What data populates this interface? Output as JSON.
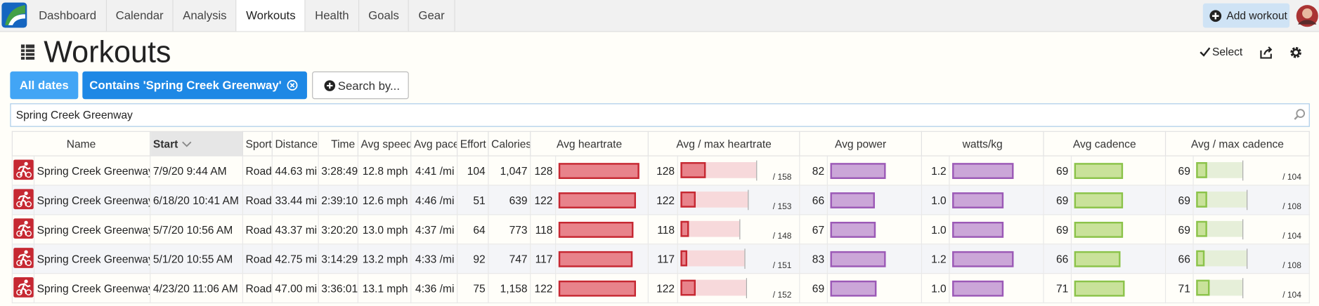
{
  "nav": {
    "items": [
      "Dashboard",
      "Calendar",
      "Analysis",
      "Workouts",
      "Health",
      "Goals",
      "Gear"
    ],
    "active": 3,
    "add_button": "Add workout"
  },
  "header": {
    "title": "Workouts",
    "select": "Select"
  },
  "filters": {
    "date": "All dates",
    "contains": "Contains 'Spring Creek Greenway'",
    "search_by": "Search by..."
  },
  "search": {
    "value": "Spring Creek Greenway"
  },
  "table": {
    "columns": [
      "Name",
      "Start",
      "Sport",
      "Distance",
      "Time",
      "Avg speed",
      "Avg pace",
      "Effort",
      "Calories",
      "Avg heartrate",
      "Avg / max heartrate",
      "Avg power",
      "watts/kg",
      "Avg cadence",
      "Avg / max cadence"
    ],
    "rows": [
      {
        "name": "Spring Creek Greenway",
        "start": "7/9/20 9:44 AM",
        "sport": "Road",
        "distance": "44.63 mi",
        "time": "3:28:49",
        "avg_speed": "12.8 mph",
        "avg_pace": "4:41 /mi",
        "effort": 104,
        "calories": "1,047",
        "heartrate": 128,
        "max_heartrate": {
          "value": 158,
          "label": "/ 158"
        },
        "power": 82,
        "watts_per_kg": 1.2,
        "cadence": 69,
        "max_cadence": {
          "value": 104,
          "label": "/ 104"
        }
      },
      {
        "name": "Spring Creek Greenway",
        "start": "6/18/20 10:41 AM",
        "sport": "Road",
        "distance": "33.44 mi",
        "time": "2:39:10",
        "avg_speed": "12.6 mph",
        "avg_pace": "4:46 /mi",
        "effort": 51,
        "calories": "639",
        "heartrate": 122,
        "max_heartrate": {
          "value": 153,
          "label": "/ 153"
        },
        "power": 66,
        "watts_per_kg": {
          "value": 1.0,
          "label": "1.0"
        },
        "cadence": 69,
        "max_cadence": {
          "value": 108,
          "label": "/ 108"
        }
      },
      {
        "name": "Spring Creek Greenway",
        "start": "5/7/20 10:56 AM",
        "sport": "Road",
        "distance": "43.37 mi",
        "time": "3:20:20",
        "avg_speed": "13.0 mph",
        "avg_pace": "4:37 /mi",
        "effort": 64,
        "calories": "773",
        "heartrate": 118,
        "max_heartrate": {
          "value": 148,
          "label": "/ 148"
        },
        "power": 67,
        "watts_per_kg": {
          "value": 1.0,
          "label": "1.0"
        },
        "cadence": 69,
        "max_cadence": {
          "value": 104,
          "label": "/ 104"
        }
      },
      {
        "name": "Spring Creek Greenway",
        "start": "5/1/20 10:55 AM",
        "sport": "Road",
        "distance": "42.75 mi",
        "time": "3:14:29",
        "avg_speed": "13.2 mph",
        "avg_pace": "4:33 /mi",
        "effort": 92,
        "calories": "747",
        "heartrate": 117,
        "max_heartrate": {
          "value": 151,
          "label": "/ 151"
        },
        "power": 83,
        "watts_per_kg": 1.2,
        "cadence": 66,
        "max_cadence": {
          "value": 108,
          "label": "/ 108"
        }
      },
      {
        "name": "Spring Creek Greenway",
        "start": "4/23/20 11:06 AM",
        "sport": "Road",
        "distance": "47.00 mi",
        "time": "3:36:01",
        "avg_speed": "13.1 mph",
        "avg_pace": "4:36 /mi",
        "effort": 75,
        "calories": "1,158",
        "heartrate": 122,
        "max_heartrate": {
          "value": 152,
          "label": "/ 152"
        },
        "power": 69,
        "watts_per_kg": {
          "value": 1.0,
          "label": "1.0"
        },
        "cadence": 71,
        "max_cadence": {
          "value": 104,
          "label": "/ 104"
        }
      }
    ]
  }
}
